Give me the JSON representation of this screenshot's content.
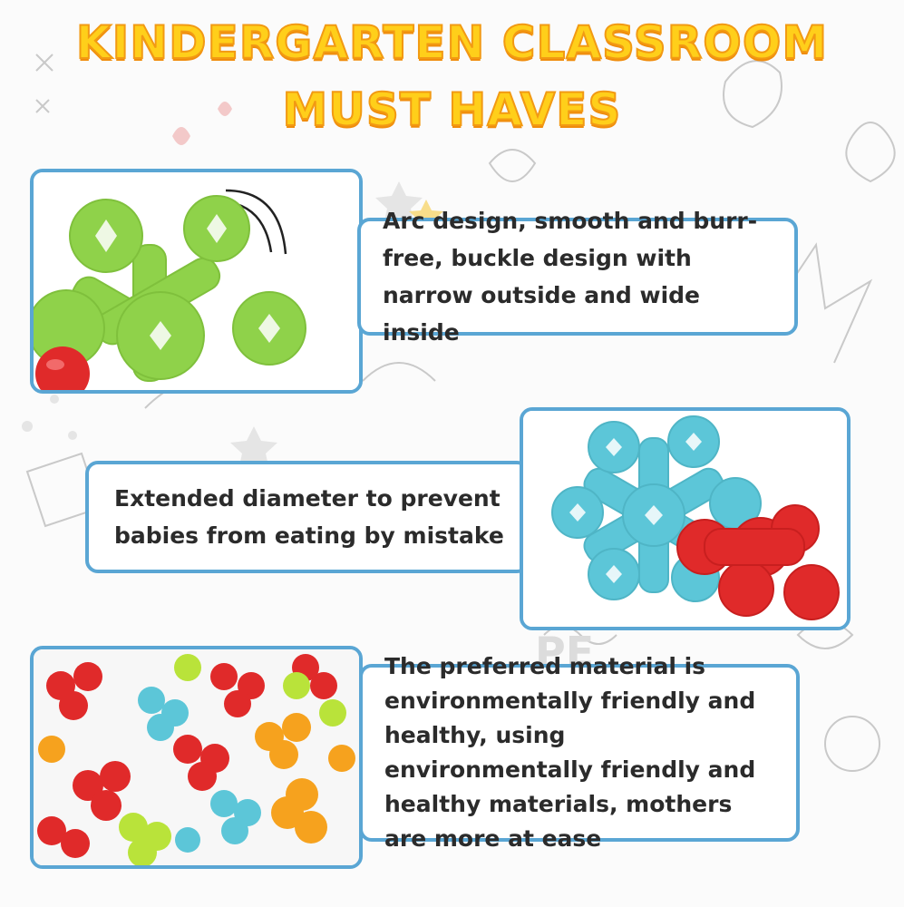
{
  "title": {
    "line1": "KINDERGARTEN CLASSROOM",
    "line2": "MUST HAVES"
  },
  "features": [
    {
      "text": "Arc design, smooth and burr-free, buckle design with narrow outside and wide inside"
    },
    {
      "text": "Extended diameter to prevent babies from eating by mistake"
    },
    {
      "text": "The preferred material is environmentally friendly and healthy, using environmentally friendly and healthy materials, mothers are more at ease"
    }
  ],
  "colors": {
    "title_fill": "#ffcf1a",
    "title_outline": "#f29a13",
    "frame_border": "#5aa6d4",
    "block_green": "#8fd24a",
    "block_blue": "#5cc6d8",
    "block_red": "#e02a2a",
    "block_orange": "#f6a21e",
    "block_lime": "#b9e33a"
  },
  "icons": [
    "star-block-icon",
    "motion-arcs-icon"
  ]
}
